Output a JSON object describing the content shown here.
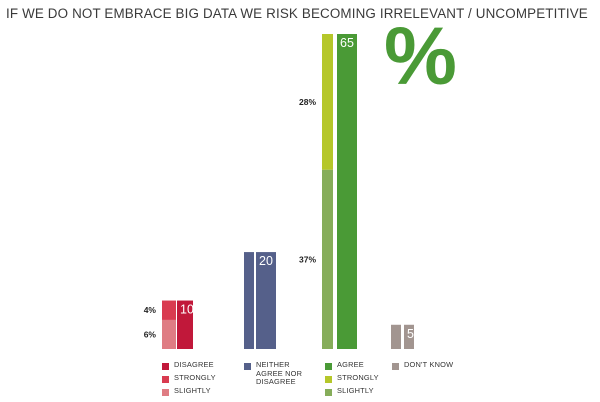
{
  "title": "IF WE DO NOT EMBRACE BIG DATA WE RISK BECOMING IRRELEVANT / UNCOMPETITIVE",
  "unit_symbol": "%",
  "colors": {
    "disagree_total": "#c1183a",
    "disagree_strongly": "#d93b50",
    "disagree_slightly": "#df7c83",
    "neither": "#55608a",
    "agree_total": "#4a9a36",
    "agree_strongly": "#b5c72a",
    "agree_slightly": "#86ad5a",
    "dont_know": "#a29590",
    "unit_symbol": "#4a9a36"
  },
  "chart_data": {
    "type": "bar",
    "ylim": [
      0,
      65
    ],
    "groups": [
      {
        "key": "disagree",
        "total": {
          "label": "10",
          "value": 10,
          "color": "#c1183a"
        },
        "breakdown": [
          {
            "name": "SLIGHTLY",
            "value": 6,
            "label": "6%",
            "color": "#df7c83"
          },
          {
            "name": "STRONGLY",
            "value": 4,
            "label": "4%",
            "color": "#d93b50"
          }
        ]
      },
      {
        "key": "neither",
        "total": {
          "label": "20",
          "value": 20,
          "color": "#55608a"
        },
        "breakdown": []
      },
      {
        "key": "agree",
        "total": {
          "label": "65",
          "value": 65,
          "color": "#4a9a36"
        },
        "breakdown": [
          {
            "name": "SLIGHTLY",
            "value": 37,
            "label": "37%",
            "color": "#86ad5a"
          },
          {
            "name": "STRONGLY",
            "value": 28,
            "label": "28%",
            "color": "#b5c72a"
          }
        ]
      },
      {
        "key": "dont_know",
        "total": {
          "label": "5",
          "value": 5,
          "color": "#a29590"
        },
        "breakdown": []
      }
    ]
  },
  "legend": [
    {
      "key": "disagree",
      "items": [
        {
          "label": "DISAGREE",
          "color": "#c1183a"
        },
        {
          "label": "STRONGLY",
          "color": "#d93b50"
        },
        {
          "label": "SLIGHTLY",
          "color": "#df7c83"
        }
      ]
    },
    {
      "key": "neither",
      "items": [
        {
          "label": "NEITHER\nAGREE NOR\nDISAGREE",
          "color": "#55608a"
        }
      ]
    },
    {
      "key": "agree",
      "items": [
        {
          "label": "AGREE",
          "color": "#4a9a36"
        },
        {
          "label": "STRONGLY",
          "color": "#b5c72a"
        },
        {
          "label": "SLIGHTLY",
          "color": "#86ad5a"
        }
      ]
    },
    {
      "key": "dont_know",
      "items": [
        {
          "label": "DON'T KNOW",
          "color": "#a29590"
        }
      ]
    }
  ]
}
